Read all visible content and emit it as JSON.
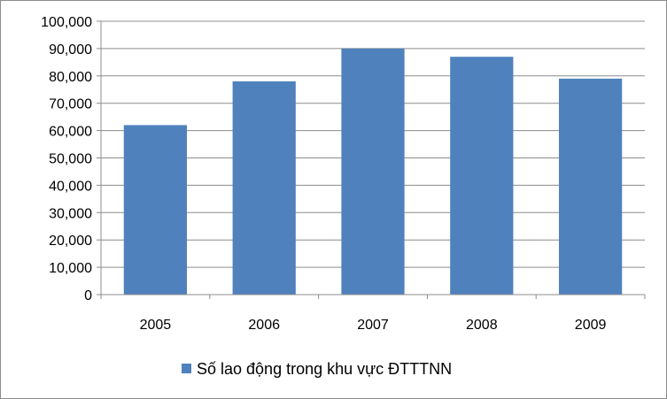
{
  "chart_data": {
    "type": "bar",
    "categories": [
      "2005",
      "2006",
      "2007",
      "2008",
      "2009"
    ],
    "series": [
      {
        "name": "Số lao động trong khu vực ĐTTTNN",
        "values": [
          62000,
          78000,
          90000,
          87000,
          79000
        ],
        "color": "#4f81bd"
      }
    ],
    "ylim": [
      0,
      100000
    ],
    "yticks": [
      "0",
      "10,000",
      "20,000",
      "30,000",
      "40,000",
      "50,000",
      "60,000",
      "70,000",
      "80,000",
      "90,000",
      "100,000"
    ],
    "grid": true,
    "legend": "bottom"
  }
}
